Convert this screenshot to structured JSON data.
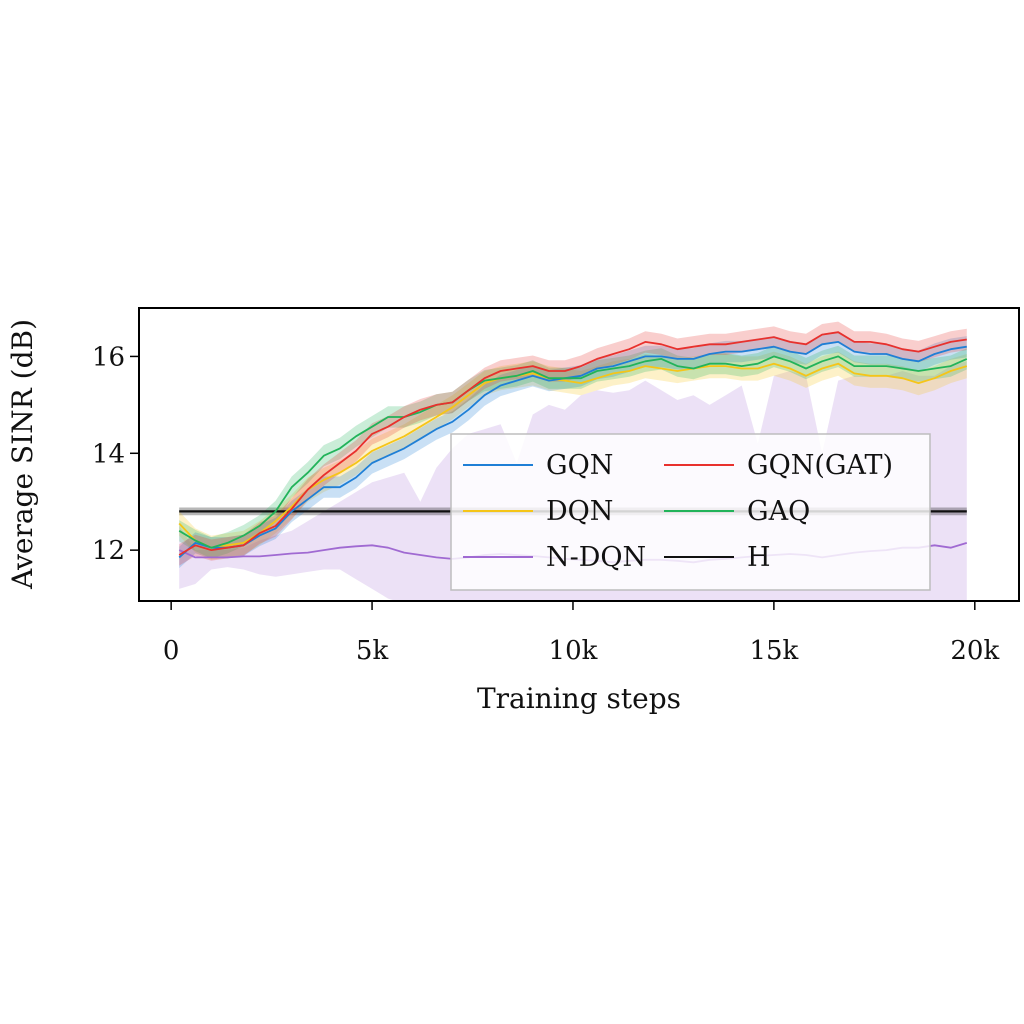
{
  "chart_data": {
    "type": "line",
    "title": "",
    "xlabel": "Training steps",
    "ylabel": "Average SINR (dB)",
    "xlim": [
      -800,
      21100
    ],
    "ylim": [
      10.95,
      17.0
    ],
    "xticks": [
      0,
      5000,
      10000,
      15000,
      20000
    ],
    "xtick_labels": [
      "0",
      "5k",
      "10k",
      "15k",
      "20k"
    ],
    "yticks": [
      12,
      14,
      16
    ],
    "ytick_labels": [
      "12",
      "14",
      "16"
    ],
    "grid": false,
    "legend_position": "center-right inside plot",
    "x": [
      200,
      600,
      1000,
      1400,
      1800,
      2200,
      2600,
      3000,
      3400,
      3800,
      4200,
      4600,
      5000,
      5400,
      5800,
      6200,
      6600,
      7000,
      7400,
      7800,
      8200,
      8600,
      9000,
      9400,
      9800,
      10200,
      10600,
      11000,
      11400,
      11800,
      12200,
      12600,
      13000,
      13400,
      13800,
      14200,
      14600,
      15000,
      15400,
      15800,
      16200,
      16600,
      17000,
      17400,
      17800,
      18200,
      18600,
      19000,
      19400,
      19800
    ],
    "series": [
      {
        "name": "GQN",
        "color": "#1f7fd6",
        "values": [
          11.85,
          12.15,
          12.05,
          12.05,
          12.1,
          12.3,
          12.45,
          12.8,
          13.05,
          13.3,
          13.3,
          13.5,
          13.8,
          13.95,
          14.1,
          14.3,
          14.5,
          14.65,
          14.9,
          15.2,
          15.4,
          15.5,
          15.6,
          15.5,
          15.55,
          15.6,
          15.75,
          15.8,
          15.9,
          16.0,
          16.0,
          15.95,
          15.95,
          16.05,
          16.1,
          16.1,
          16.15,
          16.2,
          16.1,
          16.05,
          16.25,
          16.3,
          16.1,
          16.05,
          16.05,
          15.95,
          15.9,
          16.05,
          16.15,
          16.2
        ],
        "band": 0.22
      },
      {
        "name": "GQN(GAT)",
        "color": "#e8312d",
        "values": [
          11.9,
          12.1,
          12.0,
          12.05,
          12.1,
          12.35,
          12.5,
          12.85,
          13.25,
          13.55,
          13.8,
          14.05,
          14.4,
          14.55,
          14.75,
          14.9,
          15.0,
          15.05,
          15.3,
          15.55,
          15.7,
          15.75,
          15.8,
          15.7,
          15.7,
          15.8,
          15.95,
          16.05,
          16.15,
          16.3,
          16.25,
          16.15,
          16.2,
          16.25,
          16.25,
          16.3,
          16.35,
          16.4,
          16.3,
          16.25,
          16.45,
          16.5,
          16.3,
          16.3,
          16.25,
          16.15,
          16.1,
          16.2,
          16.3,
          16.35
        ],
        "band": 0.22
      },
      {
        "name": "DQN",
        "color": "#f5c518",
        "values": [
          12.55,
          12.2,
          12.05,
          12.1,
          12.15,
          12.35,
          12.6,
          12.9,
          13.25,
          13.45,
          13.6,
          13.8,
          14.05,
          14.2,
          14.35,
          14.55,
          14.75,
          14.95,
          15.2,
          15.45,
          15.55,
          15.6,
          15.65,
          15.55,
          15.5,
          15.45,
          15.55,
          15.65,
          15.7,
          15.8,
          15.75,
          15.7,
          15.75,
          15.8,
          15.8,
          15.75,
          15.75,
          15.85,
          15.75,
          15.6,
          15.75,
          15.85,
          15.65,
          15.6,
          15.6,
          15.55,
          15.45,
          15.55,
          15.7,
          15.8
        ],
        "band": 0.25
      },
      {
        "name": "GAQ",
        "color": "#22b35a",
        "values": [
          12.4,
          12.2,
          12.05,
          12.15,
          12.3,
          12.5,
          12.8,
          13.3,
          13.6,
          13.95,
          14.1,
          14.35,
          14.55,
          14.75,
          14.75,
          14.85,
          15.0,
          15.05,
          15.3,
          15.5,
          15.55,
          15.6,
          15.7,
          15.55,
          15.55,
          15.55,
          15.7,
          15.75,
          15.8,
          15.9,
          15.95,
          15.8,
          15.75,
          15.85,
          15.85,
          15.8,
          15.85,
          16.0,
          15.9,
          15.75,
          15.9,
          16.0,
          15.8,
          15.8,
          15.8,
          15.75,
          15.7,
          15.75,
          15.8,
          15.95
        ],
        "band": 0.22
      },
      {
        "name": "N-DQN",
        "color": "#a06ad2",
        "values": [
          12.0,
          11.85,
          11.85,
          11.85,
          11.87,
          11.87,
          11.9,
          11.93,
          11.95,
          12.0,
          12.05,
          12.08,
          12.1,
          12.05,
          11.95,
          11.9,
          11.85,
          11.82,
          11.85,
          11.9,
          11.92,
          11.9,
          11.88,
          11.85,
          11.82,
          11.8,
          11.78,
          11.75,
          11.78,
          11.8,
          11.8,
          11.78,
          11.75,
          11.8,
          11.82,
          11.85,
          11.88,
          11.9,
          11.92,
          11.9,
          11.85,
          11.9,
          11.95,
          11.98,
          12.0,
          12.05,
          12.05,
          12.1,
          12.05,
          12.15
        ],
        "band_upper": [
          12.5,
          12.0,
          12.0,
          12.0,
          12.05,
          12.2,
          12.3,
          12.4,
          12.6,
          12.8,
          13.0,
          13.2,
          13.4,
          13.5,
          13.6,
          13.0,
          13.7,
          14.1,
          14.4,
          14.5,
          14.6,
          13.8,
          14.8,
          15.0,
          14.9,
          15.2,
          15.3,
          15.25,
          15.3,
          15.5,
          15.3,
          15.1,
          15.2,
          15.0,
          15.2,
          15.4,
          14.2,
          15.6,
          15.7,
          15.6,
          14.0,
          15.5,
          15.6,
          15.6,
          15.6,
          15.7,
          15.6,
          15.6,
          15.8,
          15.9
        ],
        "band_lower": [
          11.2,
          11.3,
          11.6,
          11.65,
          11.6,
          11.5,
          11.45,
          11.5,
          11.55,
          11.6,
          11.6,
          11.4,
          11.2,
          11.0,
          10.9,
          10.9,
          10.9,
          10.9,
          10.9,
          10.9,
          10.9,
          10.9,
          10.9,
          10.9,
          10.9,
          10.9,
          10.9,
          10.9,
          10.9,
          10.9,
          10.9,
          10.9,
          10.9,
          10.9,
          10.9,
          10.9,
          10.9,
          10.9,
          10.9,
          10.9,
          10.9,
          10.9,
          10.9,
          10.9,
          10.9,
          10.9,
          10.9,
          10.9,
          10.9,
          10.9
        ]
      },
      {
        "name": "H",
        "color": "#111111",
        "constant": 12.8,
        "band": 0.08
      }
    ]
  }
}
